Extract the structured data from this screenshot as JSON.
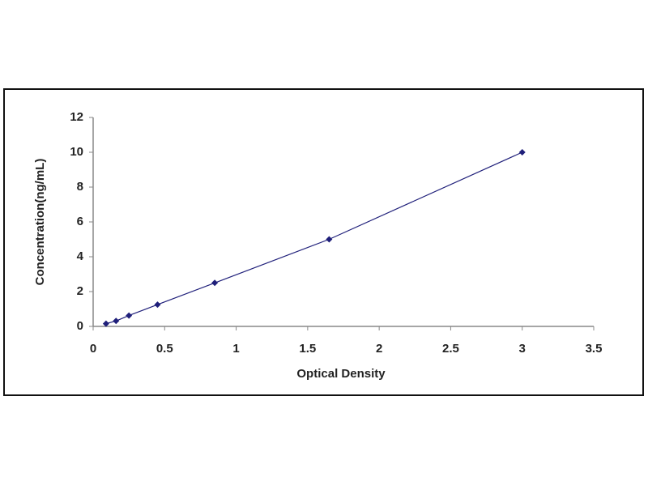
{
  "chart_data": {
    "type": "scatter",
    "x_label": "Optical Density",
    "y_label": "Concentration(ng/mL)",
    "x": [
      0.09,
      0.16,
      0.25,
      0.45,
      0.85,
      1.65,
      3.0
    ],
    "series": [
      {
        "color": "#1f1f7a",
        "values": [
          0.156,
          0.312,
          0.625,
          1.25,
          2.5,
          5,
          10
        ]
      }
    ],
    "xlim": [
      0,
      3.5
    ],
    "xticks": [
      0,
      0.5,
      1,
      1.5,
      2,
      2.5,
      3,
      3.5
    ],
    "ylim": [
      0,
      12
    ],
    "yticks": [
      0,
      2,
      4,
      6,
      8,
      10,
      12
    ],
    "grid": false
  }
}
